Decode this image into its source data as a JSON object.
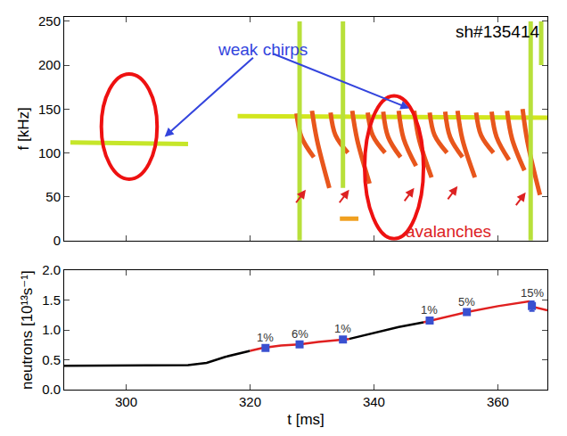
{
  "chart_data": [
    {
      "type": "spectrogram",
      "y_label": "f [kHz]",
      "xlim": [
        290,
        368
      ],
      "ylim": [
        0,
        255
      ],
      "xticks": [
        300,
        320,
        340,
        360
      ],
      "yticks": [
        0,
        50,
        100,
        150,
        200,
        250
      ],
      "tick_labels": "y",
      "grid": false,
      "series": [
        {
          "type": "line",
          "color": "#c6e62a",
          "x": [
            291,
            310
          ],
          "values": [
            112,
            110
          ]
        },
        {
          "type": "line",
          "color": "#d2e61e",
          "x": [
            318,
            368
          ],
          "values": [
            142,
            140
          ]
        },
        {
          "type": "line",
          "color": "#e8561c",
          "x": [
            327.5,
            328.3,
            330.3,
            null,
            330,
            330.8,
            332.8,
            null,
            333,
            333.8,
            335.8,
            null,
            336.5,
            337.3,
            339.3,
            null,
            339,
            339.8,
            341.8,
            null,
            341.5,
            342.3,
            344.3,
            null,
            344,
            344.8,
            346.8,
            null,
            346.5,
            347.3,
            349.3,
            null,
            349,
            349.8,
            351.8,
            null,
            351.5,
            352.3,
            354.3,
            null,
            353.5,
            354.3,
            356.3,
            null,
            356.5,
            357.3,
            359.3,
            null,
            359,
            359.8,
            361.8,
            null,
            361.5,
            362.3,
            364.3,
            null,
            364,
            364.8,
            366.8
          ],
          "values": [
            145,
            118,
            95,
            null,
            148,
            115,
            60,
            null,
            146,
            120,
            100,
            null,
            148,
            115,
            65,
            null,
            146,
            120,
            100,
            null,
            147,
            118,
            95,
            null,
            148,
            116,
            85,
            null,
            148,
            115,
            72,
            null,
            146,
            120,
            100,
            null,
            147,
            118,
            95,
            null,
            148,
            115,
            72,
            null,
            146,
            120,
            100,
            null,
            147,
            118,
            92,
            null,
            148,
            116,
            80,
            null,
            150,
            112,
            52
          ]
        },
        {
          "type": "line",
          "color": "#b8e03a",
          "x": [
            328,
            328,
            null,
            335,
            335,
            null,
            365.3,
            365.3,
            null,
            367,
            367
          ],
          "values": [
            0,
            250,
            null,
            60,
            250,
            null,
            0,
            250,
            null,
            200,
            250
          ]
        },
        {
          "type": "line",
          "color": "#f0a020",
          "x": [
            334.5,
            337.5
          ],
          "values": [
            25,
            25
          ]
        }
      ],
      "annotations": [
        {
          "text": "weak chirps",
          "x": 322,
          "y": 218,
          "color": "#3344dd",
          "points_to": [
            [
              306,
              117
            ],
            [
              346,
              150
            ]
          ]
        },
        {
          "text": "avalanches",
          "x": 352,
          "y": 10,
          "color": "#dd2222",
          "points_to": [
            [
              329,
              58
            ],
            [
              336,
              58
            ],
            [
              346.5,
              60
            ],
            [
              353.5,
              62
            ],
            [
              364.5,
              55
            ]
          ]
        },
        {
          "text": "sh#135414",
          "x": 360,
          "y": 238,
          "color": "#000000"
        }
      ],
      "highlights": [
        {
          "x": [
            296,
            305
          ],
          "y": [
            70,
            190
          ],
          "color": "#ee1111"
        },
        {
          "x": [
            338.5,
            348
          ],
          "y": [
            2,
            165
          ],
          "color": "#ee1111"
        }
      ]
    },
    {
      "type": "line",
      "x_label": "t [ms]",
      "y_label": "neutrons [10¹³s⁻¹]",
      "xlim": [
        290,
        368
      ],
      "ylim": [
        0,
        2.0
      ],
      "xticks": [
        300,
        320,
        340,
        360
      ],
      "yticks": [
        {
          "value": 0,
          "label": "0.0"
        },
        0.5,
        {
          "value": 1.0,
          "label": "1.0"
        },
        1.5,
        {
          "value": 2.0,
          "label": "2.0"
        }
      ],
      "grid": false,
      "series": [
        {
          "type": "line",
          "color": "#000000",
          "x": [
            290,
            300,
            310,
            313,
            316,
            320
          ],
          "values": [
            0.4,
            0.4,
            0.41,
            0.45,
            0.55,
            0.65
          ]
        },
        {
          "type": "line",
          "color": "#e02020",
          "x": [
            320,
            322,
            325,
            328,
            331,
            335,
            336
          ],
          "values": [
            0.65,
            0.7,
            0.74,
            0.76,
            0.8,
            0.84,
            0.85
          ]
        },
        {
          "type": "line",
          "color": "#000000",
          "x": [
            336,
            340,
            344,
            348
          ],
          "values": [
            0.85,
            0.95,
            1.05,
            1.13
          ]
        },
        {
          "type": "line",
          "color": "#e02020",
          "x": [
            348,
            350,
            355,
            360,
            364,
            365,
            366,
            368
          ],
          "values": [
            1.13,
            1.18,
            1.3,
            1.4,
            1.47,
            1.48,
            1.38,
            1.33
          ]
        },
        {
          "type": "scatter",
          "marker": "square",
          "color": "#3a50d0",
          "x": [
            322.5,
            328,
            335,
            349,
            355,
            365.5
          ],
          "values": [
            0.7,
            0.76,
            0.84,
            1.16,
            1.3,
            1.4
          ],
          "error": [
            0.03,
            0.03,
            0.03,
            0.03,
            0.03,
            0.08
          ]
        }
      ],
      "annotations": [
        {
          "text": "1%",
          "x": 322.5,
          "y": 0.88,
          "color": "#333333"
        },
        {
          "text": "6%",
          "x": 328,
          "y": 0.94,
          "color": "#333333"
        },
        {
          "text": "1%",
          "x": 335,
          "y": 1.02,
          "color": "#333333"
        },
        {
          "text": "1%",
          "x": 349,
          "y": 1.34,
          "color": "#333333"
        },
        {
          "text": "5%",
          "x": 355,
          "y": 1.48,
          "color": "#333333"
        },
        {
          "text": "15%",
          "x": 365.5,
          "y": 1.62,
          "color": "#333333"
        }
      ]
    }
  ]
}
